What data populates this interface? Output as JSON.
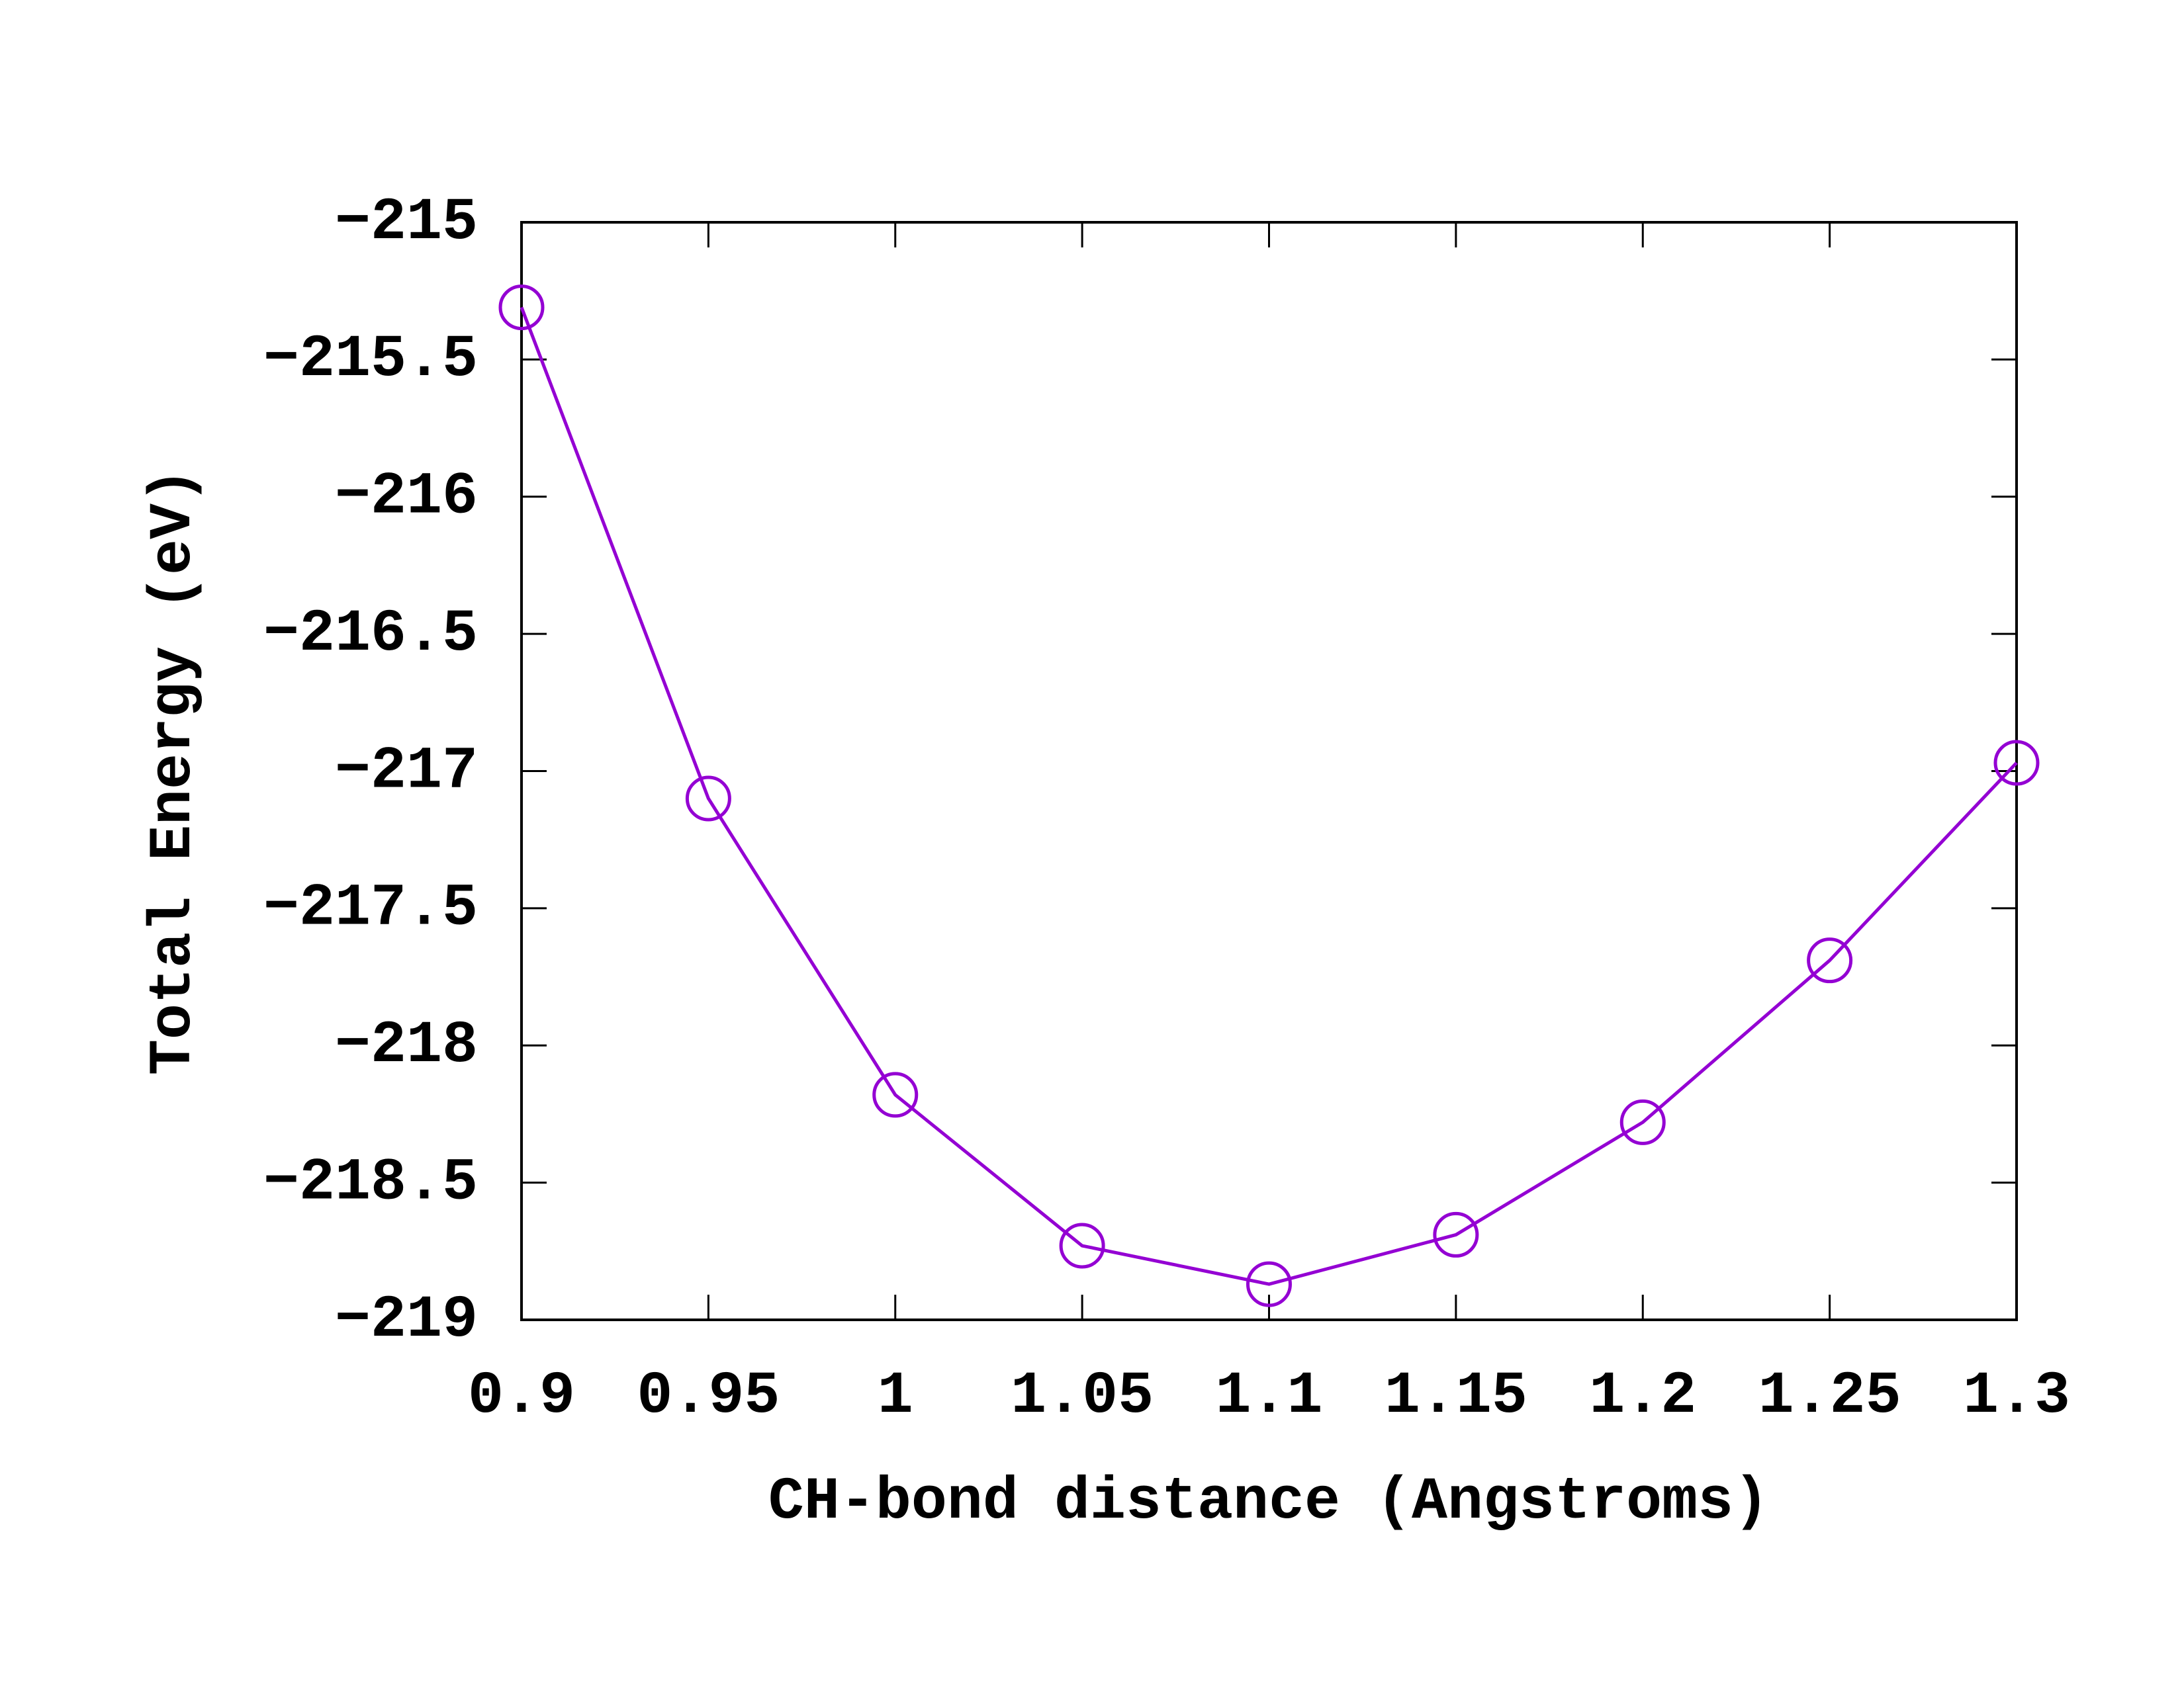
{
  "chart_data": {
    "type": "line",
    "xlabel": "CH-bond distance (Angstroms)",
    "ylabel": "Total Energy (eV)",
    "x": [
      0.9,
      0.95,
      1.0,
      1.05,
      1.1,
      1.15,
      1.2,
      1.25,
      1.3
    ],
    "values": [
      -215.31,
      -217.1,
      -218.18,
      -218.73,
      -218.87,
      -218.69,
      -218.28,
      -217.69,
      -216.97
    ],
    "color": "#9400d3",
    "marker": "circle",
    "xlim": [
      0.9,
      1.3
    ],
    "xticks": [
      0.9,
      0.95,
      1,
      1.05,
      1.1,
      1.15,
      1.2,
      1.25,
      1.3
    ],
    "ylim": [
      -219,
      -215
    ],
    "yticks": [
      {
        "value": -219,
        "label": "−219"
      },
      {
        "value": -218.5,
        "label": "−218.5"
      },
      {
        "value": -218,
        "label": "−218"
      },
      {
        "value": -217.5,
        "label": "−217.5"
      },
      {
        "value": -217,
        "label": "−217"
      },
      {
        "value": -216.5,
        "label": "−216.5"
      },
      {
        "value": -216,
        "label": "−216"
      },
      {
        "value": -215.5,
        "label": "−215.5"
      },
      {
        "value": -215,
        "label": "−215"
      }
    ],
    "grid": false
  }
}
